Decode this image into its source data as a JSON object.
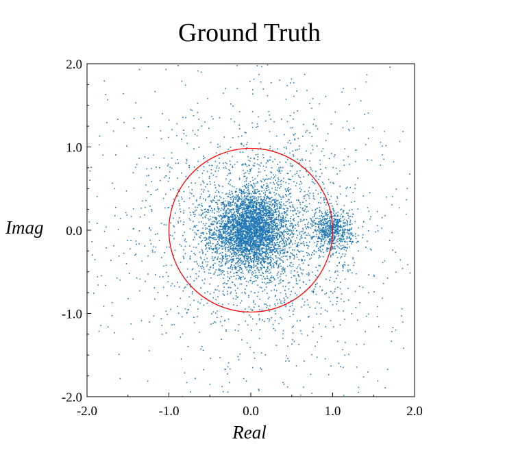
{
  "chart_data": {
    "type": "scatter",
    "title": "Ground Truth",
    "xlabel": "Real",
    "ylabel": "Imag",
    "xlim": [
      -2.0,
      2.0
    ],
    "ylim": [
      -2.0,
      2.0
    ],
    "grid": false,
    "x_ticks": [
      {
        "value": -2.0,
        "label": "-2.0",
        "color": "#000000"
      },
      {
        "value": -1.0,
        "label": "-1.0",
        "color": "#ff0000"
      },
      {
        "value": 0.0,
        "label": "0.0",
        "color": "#000000"
      },
      {
        "value": 1.0,
        "label": "1.0",
        "color": "#ff0000"
      },
      {
        "value": 2.0,
        "label": "2.0",
        "color": "#000000"
      }
    ],
    "y_ticks": [
      {
        "value": 2.0,
        "label": "2.0",
        "color": "#000000"
      },
      {
        "value": 1.0,
        "label": "1.0",
        "color": "#ff0000"
      },
      {
        "value": 0.0,
        "label": "0.0",
        "color": "#000000"
      },
      {
        "value": -1.0,
        "label": "-1.0",
        "color": "#ff0000"
      },
      {
        "value": -2.0,
        "label": "-2.0",
        "color": "#000000"
      }
    ],
    "point_color": "#1f77b4",
    "unit_circle": {
      "center": [
        0.0,
        0.0
      ],
      "radius": 1.0,
      "color": "#ff0000"
    },
    "clusters": [
      {
        "center": [
          0.0,
          0.0
        ],
        "spread": 0.22,
        "count": 3200
      },
      {
        "center": [
          1.0,
          0.0
        ],
        "spread": 0.12,
        "count": 650
      },
      {
        "center": [
          0.1,
          0.0
        ],
        "spread": 0.55,
        "count": 1800
      },
      {
        "center": [
          0.0,
          0.0
        ],
        "spread": 1.2,
        "count": 900
      }
    ]
  }
}
